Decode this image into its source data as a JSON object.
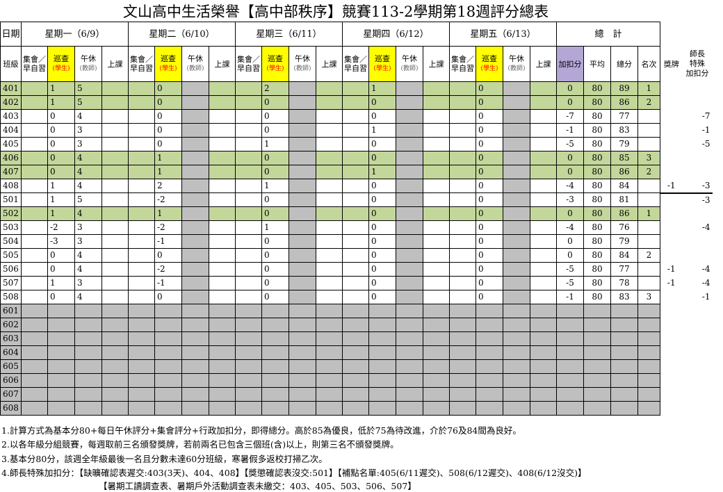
{
  "title": "文山高中生活榮譽【高中部秩序】競賽113-2學期第18週評分總表",
  "header": {
    "date_label": "日期",
    "class_label": "班級",
    "days": [
      "星期一（6/9）",
      "星期二（6/10）",
      "星期三（6/11）",
      "星期四（6/12）",
      "星期五（6/13）"
    ],
    "total_label": "總　計",
    "sub_gather_1": "集會／",
    "sub_gather_2": "早自習",
    "sub_patrol_1": "巡查",
    "sub_patrol_2": "(學生)",
    "sub_nap_1": "午休",
    "sub_nap_2": "(教師)",
    "sub_class": "上課",
    "bonus_label": "加扣分",
    "avg_label": "平均",
    "total_score_label": "總分",
    "rank_label": "名次",
    "award_label": "獎牌",
    "principal_label_1": "師長",
    "principal_label_2": "特殊",
    "principal_label_3": "加扣分"
  },
  "rows": [
    {
      "cls": "401",
      "green": true,
      "mon_g": "",
      "mon_p": "1",
      "mon_n": "5",
      "tue_p": "0",
      "wed_p": "2",
      "thu_p": "1",
      "fri_p": "0",
      "bonus": "0",
      "avg": "80",
      "total": "89",
      "rank": "1",
      "award": "",
      "special": ""
    },
    {
      "cls": "402",
      "green": true,
      "mon_g": "",
      "mon_p": "1",
      "mon_n": "5",
      "tue_p": "0",
      "wed_p": "0",
      "thu_p": "0",
      "fri_p": "0",
      "bonus": "0",
      "avg": "80",
      "total": "86",
      "rank": "2",
      "award": "",
      "special": ""
    },
    {
      "cls": "403",
      "green": false,
      "mon_g": "",
      "mon_p": "0",
      "mon_n": "4",
      "tue_p": "0",
      "wed_p": "0",
      "thu_p": "0",
      "fri_p": "0",
      "bonus": "-7",
      "avg": "80",
      "total": "77",
      "rank": "",
      "award": "",
      "special": "-7"
    },
    {
      "cls": "404",
      "green": false,
      "mon_g": "",
      "mon_p": "0",
      "mon_n": "3",
      "tue_p": "0",
      "wed_p": "0",
      "thu_p": "1",
      "fri_p": "0",
      "bonus": "-1",
      "avg": "80",
      "total": "83",
      "rank": "",
      "award": "",
      "special": "-1"
    },
    {
      "cls": "405",
      "green": false,
      "mon_g": "",
      "mon_p": "0",
      "mon_n": "3",
      "tue_p": "0",
      "wed_p": "1",
      "thu_p": "0",
      "fri_p": "0",
      "bonus": "-5",
      "avg": "80",
      "total": "79",
      "rank": "",
      "award": "",
      "special": "-5"
    },
    {
      "cls": "406",
      "green": true,
      "mon_g": "",
      "mon_p": "0",
      "mon_n": "4",
      "tue_p": "1",
      "wed_p": "0",
      "thu_p": "0",
      "fri_p": "0",
      "bonus": "0",
      "avg": "80",
      "total": "85",
      "rank": "3",
      "award": "",
      "special": ""
    },
    {
      "cls": "407",
      "green": true,
      "mon_g": "",
      "mon_p": "0",
      "mon_n": "4",
      "tue_p": "1",
      "wed_p": "0",
      "thu_p": "1",
      "fri_p": "0",
      "bonus": "0",
      "avg": "80",
      "total": "86",
      "rank": "2",
      "award": "",
      "special": ""
    },
    {
      "cls": "408",
      "green": false,
      "mon_g": "",
      "mon_p": "1",
      "mon_n": "4",
      "tue_p": "2",
      "wed_p": "1",
      "thu_p": "0",
      "fri_p": "0",
      "bonus": "-4",
      "avg": "80",
      "total": "84",
      "rank": "",
      "award": "-1",
      "special": "-3"
    },
    {
      "cls": "501",
      "green": false,
      "mon_g": "",
      "mon_p": "1",
      "mon_n": "5",
      "tue_p": "-2",
      "wed_p": "0",
      "thu_p": "0",
      "fri_p": "0",
      "bonus": "-3",
      "avg": "80",
      "total": "81",
      "rank": "",
      "award": "",
      "special": "-3"
    },
    {
      "cls": "502",
      "green": true,
      "mon_g": "",
      "mon_p": "1",
      "mon_n": "4",
      "tue_p": "1",
      "wed_p": "0",
      "thu_p": "0",
      "fri_p": "0",
      "bonus": "0",
      "avg": "80",
      "total": "86",
      "rank": "1",
      "award": "",
      "special": ""
    },
    {
      "cls": "503",
      "green": false,
      "mon_g": "",
      "mon_p": "-2",
      "mon_n": "3",
      "tue_p": "-2",
      "wed_p": "1",
      "thu_p": "0",
      "fri_p": "0",
      "bonus": "-4",
      "avg": "80",
      "total": "76",
      "rank": "",
      "award": "",
      "special": "-4"
    },
    {
      "cls": "504",
      "green": false,
      "mon_g": "",
      "mon_p": "-3",
      "mon_n": "3",
      "tue_p": "-1",
      "wed_p": "0",
      "thu_p": "0",
      "fri_p": "0",
      "bonus": "0",
      "avg": "80",
      "total": "79",
      "rank": "",
      "award": "",
      "special": ""
    },
    {
      "cls": "505",
      "green": false,
      "mon_g": "",
      "mon_p": "0",
      "mon_n": "4",
      "tue_p": "0",
      "wed_p": "0",
      "thu_p": "0",
      "fri_p": "0",
      "bonus": "0",
      "avg": "80",
      "total": "84",
      "rank": "2",
      "award": "",
      "special": ""
    },
    {
      "cls": "506",
      "green": false,
      "mon_g": "",
      "mon_p": "0",
      "mon_n": "4",
      "tue_p": "-2",
      "wed_p": "0",
      "thu_p": "0",
      "fri_p": "0",
      "bonus": "-5",
      "avg": "80",
      "total": "77",
      "rank": "",
      "award": "-1",
      "special": "-4"
    },
    {
      "cls": "507",
      "green": false,
      "mon_g": "",
      "mon_p": "1",
      "mon_n": "3",
      "tue_p": "-1",
      "wed_p": "0",
      "thu_p": "0",
      "fri_p": "0",
      "bonus": "-5",
      "avg": "80",
      "total": "78",
      "rank": "",
      "award": "-1",
      "special": "-4"
    },
    {
      "cls": "508",
      "green": false,
      "mon_g": "",
      "mon_p": "0",
      "mon_n": "4",
      "tue_p": "0",
      "wed_p": "0",
      "thu_p": "0",
      "fri_p": "0",
      "bonus": "-1",
      "avg": "80",
      "total": "83",
      "rank": "3",
      "award": "",
      "special": "-1"
    }
  ],
  "empty_rows": [
    "601",
    "602",
    "603",
    "604",
    "605",
    "606",
    "607",
    "608"
  ],
  "notes": [
    "1.計算方式為基本分80+每日午休評分+集會評分+行政加扣分，即得總分。高於85為優良，低於75為待改進，介於76及84間為良好。",
    "2.以各年級分組競賽，每週取前三名頒發獎牌，若前兩名已包含三個班(含)以上，則第三名不頒發獎牌。",
    "3.基本分80分，該週全年級最後一名且分數未達60分班級，寒暑假多返校打掃乙次。",
    "4.師長特殊加扣分：【缺曠確認表遲交:403(3天)、404、408】【獎懲確認表沒交:501】【補點名單:405(6/11遲交)、508(6/12遲交)、408(6/12沒交)】",
    "【暑期工讀調查表、暑期戶外活動調查表未繳交：403、405、503、506、507】"
  ]
}
